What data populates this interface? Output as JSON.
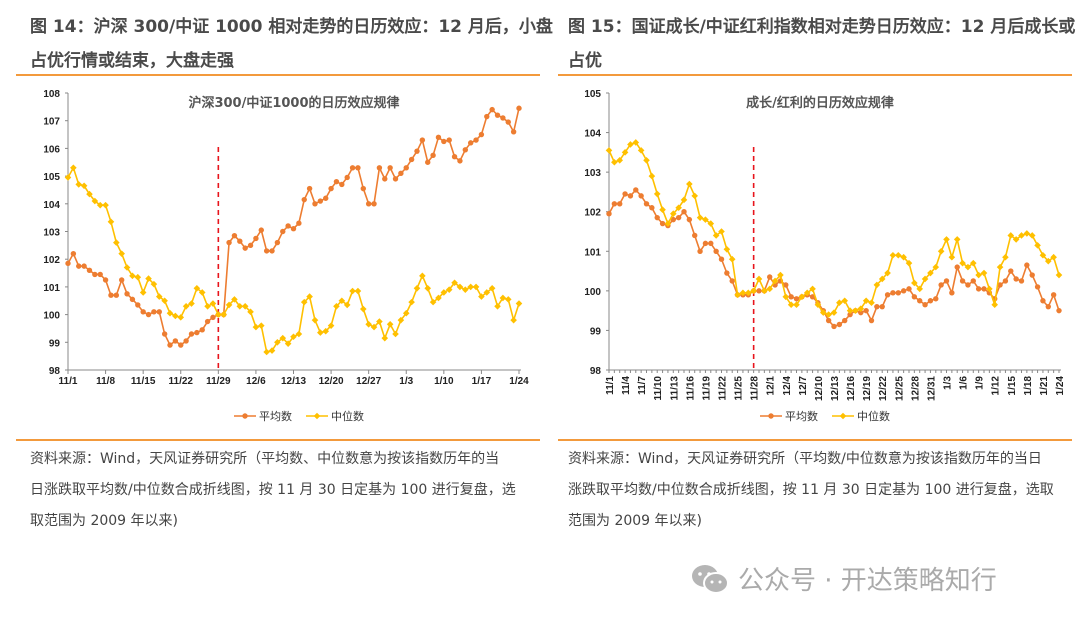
{
  "figures": [
    {
      "heading": "图 14：沪深 300/中证 1000 相对走势的日历效应：12 月后，小盘占优行情或结束，大盘走强",
      "heading_lines": [
        "图 14：沪深 300/中证 1000 相对走势的日历效应：12 月后，小盘",
        "占优行情或结束，大盘走强"
      ],
      "source_lines": [
        "资料来源：Wind，天风证券研究所（平均数、中位数意为按该指数历年的当",
        "日涨跌取平均数/中位数合成折线图，按 11 月 30 日定基为 100 进行复盘，选",
        "取范围为 2009 年以来)"
      ]
    },
    {
      "heading": "图 15：国证成长/中证红利指数相对走势日历效应：12 月后成长或占优",
      "heading_lines": [
        "图 15：国证成长/中证红利指数相对走势日历效应：12 月后成长或",
        "占优"
      ],
      "source_lines": [
        "资料来源：Wind，天风证券研究所（平均数/中位数意为按该指数历年的当日",
        "涨跌取平均数/中位数合成折线图，按 11 月 30 日定基为 100 进行复盘，选取",
        "范围为 2009 年以来)"
      ]
    }
  ],
  "watermark": "公众号 · 开达策略知行",
  "colors": {
    "mean": "#ED7D31",
    "median": "#FFC000",
    "divider": "#E8141C",
    "rule": "#F39A3C"
  },
  "chart_data": [
    {
      "type": "line",
      "title": "沪深300/中证1000的日历效应规律",
      "x_start": "11/1",
      "x_end": "1/24",
      "x_step": "1 day",
      "x_tick_labels": [
        "11/1",
        "11/8",
        "11/15",
        "11/22",
        "11/29",
        "12/6",
        "12/13",
        "12/20",
        "12/27",
        "1/3",
        "1/10",
        "1/17",
        "1/24"
      ],
      "x_tick_interval_days": 7,
      "ylim": [
        98,
        108
      ],
      "y_ticks": [
        98,
        99,
        100,
        101,
        102,
        103,
        104,
        105,
        106,
        107,
        108
      ],
      "vline_at": "11/29",
      "grid": false,
      "legend_position": "bottom",
      "series": [
        {
          "name": "平均数",
          "marker": "circle",
          "values": [
            101.85,
            102.2,
            101.75,
            101.75,
            101.6,
            101.45,
            101.45,
            101.25,
            100.7,
            100.7,
            101.25,
            100.75,
            100.55,
            100.35,
            100.1,
            100.0,
            100.1,
            100.1,
            99.3,
            98.9,
            99.05,
            98.9,
            99.05,
            99.3,
            99.35,
            99.45,
            99.75,
            99.9,
            100.0,
            100.0,
            102.6,
            102.85,
            102.65,
            102.4,
            102.5,
            102.75,
            103.05,
            102.3,
            102.3,
            102.6,
            103.0,
            103.2,
            103.1,
            103.3,
            104.15,
            104.55,
            104.0,
            104.1,
            104.2,
            104.55,
            104.8,
            104.7,
            104.95,
            105.3,
            105.3,
            104.55,
            104.0,
            104.0,
            105.3,
            104.9,
            105.3,
            104.9,
            105.1,
            105.3,
            105.6,
            105.9,
            106.3,
            105.5,
            105.75,
            106.4,
            106.25,
            106.3,
            105.7,
            105.55,
            105.95,
            106.2,
            106.3,
            106.5,
            107.15,
            107.4,
            107.2,
            107.1,
            106.95,
            106.6,
            107.45
          ]
        },
        {
          "name": "中位数",
          "marker": "diamond",
          "values": [
            104.95,
            105.3,
            104.7,
            104.65,
            104.35,
            104.1,
            103.95,
            103.95,
            103.35,
            102.6,
            102.2,
            101.7,
            101.4,
            101.35,
            100.8,
            101.3,
            101.1,
            100.65,
            100.5,
            100.05,
            99.95,
            99.9,
            100.3,
            100.4,
            100.95,
            100.8,
            100.3,
            100.4,
            100.0,
            100.0,
            100.35,
            100.55,
            100.3,
            100.3,
            100.1,
            99.55,
            99.6,
            98.65,
            98.7,
            99.0,
            99.15,
            98.95,
            99.2,
            99.3,
            100.45,
            100.65,
            99.8,
            99.35,
            99.4,
            99.6,
            100.3,
            100.5,
            100.35,
            100.85,
            100.85,
            100.2,
            99.65,
            99.55,
            99.75,
            99.15,
            99.65,
            99.3,
            99.8,
            100.05,
            100.45,
            100.95,
            101.4,
            100.95,
            100.45,
            100.6,
            100.8,
            100.9,
            101.15,
            101.0,
            100.9,
            101.0,
            101.0,
            100.65,
            100.8,
            100.95,
            100.3,
            100.6,
            100.55,
            99.8,
            100.4
          ]
        }
      ]
    },
    {
      "type": "line",
      "title": "成长/红利的日历效应规律",
      "x_start": "11/1",
      "x_end": "1/24",
      "x_step": "1 day",
      "x_tick_labels": [
        "11/1",
        "11/4",
        "11/7",
        "11/10",
        "11/13",
        "11/16",
        "11/19",
        "11/22",
        "11/25",
        "11/28",
        "12/1",
        "12/4",
        "12/7",
        "12/10",
        "12/13",
        "12/16",
        "12/19",
        "12/22",
        "12/25",
        "12/28",
        "12/31",
        "1/3",
        "1/6",
        "1/9",
        "1/12",
        "1/15",
        "1/18",
        "1/21",
        "1/24"
      ],
      "x_tick_interval_days": 3,
      "ylim": [
        98,
        105
      ],
      "y_ticks": [
        98,
        99,
        100,
        101,
        102,
        103,
        104,
        105
      ],
      "vline_at": "11/28",
      "grid": false,
      "legend_position": "bottom",
      "series": [
        {
          "name": "平均数",
          "marker": "circle",
          "values": [
            101.95,
            102.2,
            102.2,
            102.45,
            102.4,
            102.55,
            102.4,
            102.2,
            102.1,
            101.85,
            101.7,
            101.65,
            101.8,
            101.85,
            102.0,
            101.8,
            101.4,
            101.0,
            101.2,
            101.2,
            101.0,
            100.8,
            100.45,
            100.25,
            99.9,
            99.9,
            99.9,
            100.0,
            100.0,
            100.0,
            100.35,
            100.15,
            100.25,
            100.15,
            99.85,
            99.8,
            99.85,
            99.9,
            99.85,
            99.7,
            99.5,
            99.25,
            99.1,
            99.15,
            99.25,
            99.4,
            99.5,
            99.45,
            99.5,
            99.25,
            99.6,
            99.6,
            99.9,
            99.95,
            99.95,
            100.0,
            100.05,
            99.85,
            99.75,
            99.65,
            99.75,
            99.8,
            100.15,
            100.25,
            99.95,
            100.6,
            100.25,
            100.15,
            100.25,
            100.05,
            100.05,
            99.95,
            99.8,
            100.15,
            100.25,
            100.5,
            100.3,
            100.25,
            100.65,
            100.4,
            100.1,
            99.75,
            99.6,
            99.9,
            99.5
          ]
        },
        {
          "name": "中位数",
          "marker": "diamond",
          "values": [
            103.55,
            103.25,
            103.3,
            103.5,
            103.7,
            103.75,
            103.55,
            103.3,
            102.9,
            102.45,
            102.05,
            101.7,
            101.95,
            102.1,
            102.3,
            102.7,
            102.4,
            101.85,
            101.8,
            101.7,
            101.4,
            101.5,
            101.05,
            100.8,
            99.9,
            99.95,
            99.95,
            100.0,
            100.3,
            100.0,
            100.05,
            100.25,
            100.4,
            99.85,
            99.65,
            99.65,
            99.85,
            99.95,
            100.05,
            99.65,
            99.45,
            99.4,
            99.45,
            99.7,
            99.75,
            99.5,
            99.5,
            99.55,
            99.75,
            99.7,
            100.15,
            100.3,
            100.45,
            100.9,
            100.9,
            100.85,
            100.7,
            100.2,
            100.05,
            100.3,
            100.45,
            100.6,
            101.0,
            101.3,
            100.85,
            101.3,
            100.7,
            100.6,
            100.7,
            100.4,
            100.45,
            100.05,
            99.65,
            100.6,
            100.85,
            101.4,
            101.3,
            101.4,
            101.45,
            101.4,
            101.15,
            100.9,
            100.75,
            100.85,
            100.4
          ]
        }
      ]
    }
  ]
}
